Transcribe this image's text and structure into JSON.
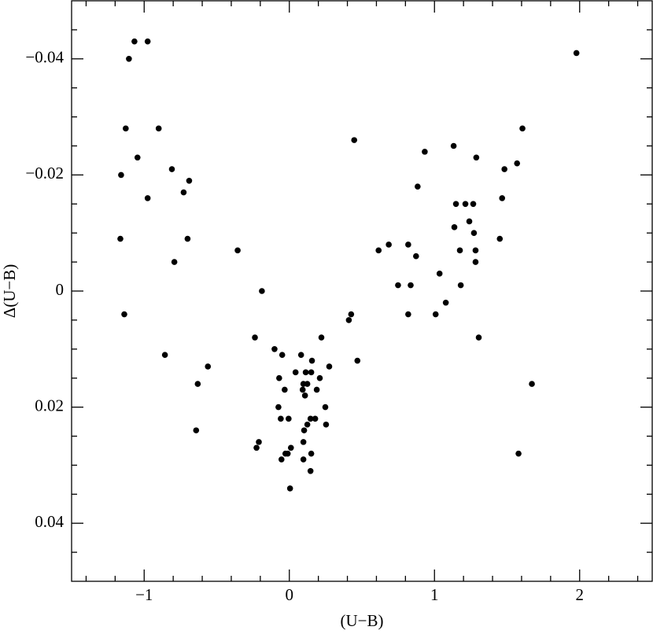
{
  "chart_data": {
    "type": "scatter",
    "xlabel": "(U−B)",
    "ylabel": "Δ(U−B)",
    "xlim": [
      -1.5,
      2.5
    ],
    "ylim": [
      -0.05,
      0.05
    ],
    "y_inverted": true,
    "xticks": [
      {
        "value": -1,
        "label": "−1"
      },
      0,
      1,
      2
    ],
    "yticks": [
      {
        "value": -0.04,
        "label": "−0.04"
      },
      {
        "value": -0.02,
        "label": "−0.02"
      },
      0,
      0.02,
      0.04
    ],
    "xminorticks": [
      -1.4,
      -1.2,
      -0.8,
      -0.6,
      -0.4,
      -0.2,
      0.2,
      0.4,
      0.6,
      0.8,
      1.2,
      1.4,
      1.6,
      1.8,
      2.2,
      2.4
    ],
    "yminorticks": [
      -0.045,
      -0.035,
      -0.03,
      -0.025,
      -0.015,
      -0.01,
      -0.005,
      0.005,
      0.01,
      0.015,
      0.025,
      0.03,
      0.035,
      0.045
    ],
    "color": "#000000",
    "x": [
      -1.067,
      -0.976,
      -1.105,
      -1.127,
      -0.9,
      -1.046,
      -1.159,
      -0.809,
      -0.69,
      -0.728,
      -0.976,
      -1.164,
      -0.701,
      -0.792,
      -0.356,
      -1.137,
      -0.189,
      -0.857,
      -0.561,
      -0.631,
      -0.642,
      0.447,
      -0.237,
      -0.226,
      -0.21,
      -0.102,
      -0.049,
      -0.07,
      -0.032,
      -0.075,
      -0.059,
      -0.005,
      -0.054,
      -0.027,
      -0.011,
      0.011,
      0.005,
      0.043,
      0.081,
      0.113,
      0.097,
      0.124,
      0.092,
      0.108,
      0.156,
      0.151,
      0.189,
      0.21,
      0.221,
      0.275,
      0.248,
      0.253,
      0.178,
      0.146,
      0.124,
      0.102,
      0.097,
      0.097,
      0.151,
      0.146,
      0.41,
      0.426,
      0.469,
      0.615,
      0.685,
      0.749,
      0.819,
      0.836,
      0.873,
      0.819,
      0.884,
      0.933,
      1.035,
      1.078,
      1.008,
      1.132,
      1.148,
      1.137,
      1.175,
      1.181,
      1.213,
      1.24,
      1.267,
      1.272,
      1.288,
      1.283,
      1.283,
      1.305,
      1.482,
      1.466,
      1.45,
      1.569,
      1.606,
      1.579,
      1.671,
      1.978
    ],
    "values": [
      -0.043,
      -0.043,
      -0.04,
      -0.028,
      -0.028,
      -0.023,
      -0.02,
      -0.021,
      -0.019,
      -0.017,
      -0.016,
      -0.009,
      -0.009,
      -0.005,
      -0.007,
      0.004,
      0.0,
      0.011,
      0.013,
      0.016,
      0.024,
      -0.026,
      0.008,
      0.027,
      0.026,
      0.01,
      0.011,
      0.015,
      0.017,
      0.02,
      0.022,
      0.022,
      0.029,
      0.028,
      0.028,
      0.027,
      0.034,
      0.014,
      0.011,
      0.014,
      0.016,
      0.016,
      0.017,
      0.018,
      0.012,
      0.014,
      0.017,
      0.015,
      0.008,
      0.013,
      0.02,
      0.023,
      0.022,
      0.022,
      0.023,
      0.024,
      0.026,
      0.029,
      0.028,
      0.031,
      0.005,
      0.004,
      0.012,
      -0.007,
      -0.008,
      -0.001,
      -0.008,
      -0.001,
      -0.006,
      0.004,
      -0.018,
      -0.024,
      -0.003,
      0.002,
      0.004,
      -0.025,
      -0.015,
      -0.011,
      -0.007,
      -0.001,
      -0.015,
      -0.012,
      -0.015,
      -0.01,
      -0.023,
      -0.007,
      -0.005,
      0.008,
      -0.021,
      -0.016,
      -0.009,
      -0.022,
      -0.028,
      0.028,
      0.016,
      -0.041
    ]
  }
}
